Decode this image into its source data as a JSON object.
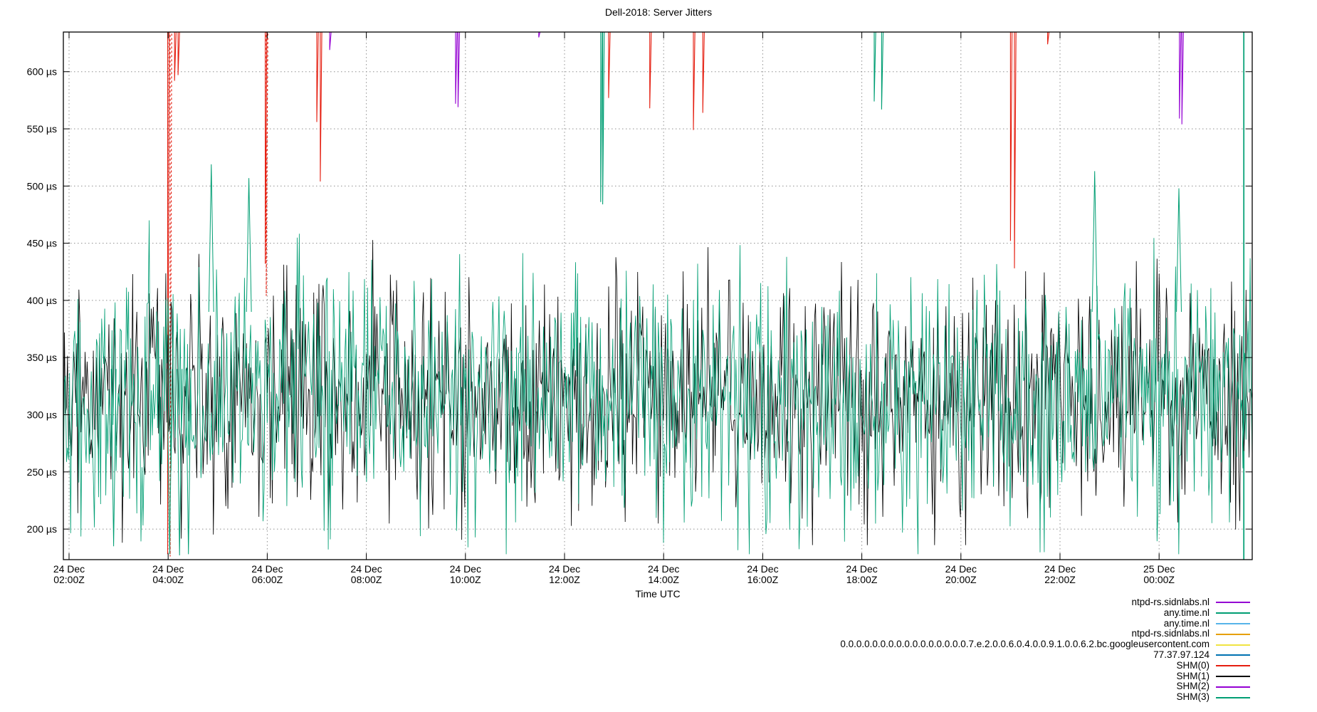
{
  "chart_data": {
    "type": "line",
    "title": "Dell-2018: Server Jitters",
    "xlabel": "Time UTC",
    "ylabel": "",
    "y_unit": "µs",
    "ylim_us": [
      173,
      635
    ],
    "grid": true,
    "legend_position": "bottom-right",
    "y_ticks": [
      {
        "value": 200,
        "label": "200 µs"
      },
      {
        "value": 250,
        "label": "250 µs"
      },
      {
        "value": 300,
        "label": "300 µs"
      },
      {
        "value": 350,
        "label": "350 µs"
      },
      {
        "value": 400,
        "label": "400 µs"
      },
      {
        "value": 450,
        "label": "450 µs"
      },
      {
        "value": 500,
        "label": "500 µs"
      },
      {
        "value": 550,
        "label": "550 µs"
      },
      {
        "value": 600,
        "label": "600 µs"
      }
    ],
    "x_ticks": [
      {
        "hour": 0,
        "line1": "24 Dec",
        "line2": "02:00Z"
      },
      {
        "hour": 2,
        "line1": "24 Dec",
        "line2": "04:00Z"
      },
      {
        "hour": 4,
        "line1": "24 Dec",
        "line2": "06:00Z"
      },
      {
        "hour": 6,
        "line1": "24 Dec",
        "line2": "08:00Z"
      },
      {
        "hour": 8,
        "line1": "24 Dec",
        "line2": "10:00Z"
      },
      {
        "hour": 10,
        "line1": "24 Dec",
        "line2": "12:00Z"
      },
      {
        "hour": 12,
        "line1": "24 Dec",
        "line2": "14:00Z"
      },
      {
        "hour": 14,
        "line1": "24 Dec",
        "line2": "16:00Z"
      },
      {
        "hour": 16,
        "line1": "24 Dec",
        "line2": "18:00Z"
      },
      {
        "hour": 18,
        "line1": "24 Dec",
        "line2": "20:00Z"
      },
      {
        "hour": 20,
        "line1": "24 Dec",
        "line2": "22:00Z"
      },
      {
        "hour": 22,
        "line1": "25 Dec",
        "line2": "00:00Z"
      }
    ],
    "series": [
      {
        "name": "ntpd-rs.sidnlabs.nl",
        "color": "#9400d3",
        "render": {
          "kind": "none"
        }
      },
      {
        "name": "any.time.nl",
        "color": "#009e73",
        "render": {
          "kind": "spikes",
          "events": [
            {
              "t": 10.73,
              "v": 486
            },
            {
              "t": 10.77,
              "v": 484
            },
            {
              "t": 16.25,
              "v": 574
            },
            {
              "t": 16.4,
              "v": 567
            },
            {
              "t": 23.71,
              "v": 176,
              "full": true
            }
          ]
        }
      },
      {
        "name": "any.time.nl",
        "color": "#56b4e9",
        "render": {
          "kind": "none"
        }
      },
      {
        "name": "ntpd-rs.sidnlabs.nl",
        "color": "#e69f00",
        "render": {
          "kind": "none"
        }
      },
      {
        "name": "0.0.0.0.0.0.0.0.0.0.0.0.0.0.0.0.7.e.2.0.0.6.0.4.0.0.9.1.0.0.6.2.bc.googleusercontent.com",
        "color": "#f0e442",
        "render": {
          "kind": "none"
        }
      },
      {
        "name": "77.37.97.124",
        "color": "#0072b2",
        "render": {
          "kind": "none"
        }
      },
      {
        "name": "SHM(0)",
        "color": "#e51e10",
        "render": {
          "kind": "spikes",
          "events": [
            {
              "t": 1.99,
              "v": 178
            },
            {
              "t": 2.04,
              "v": 176,
              "dashed": true
            },
            {
              "t": 2.13,
              "v": 592
            },
            {
              "t": 2.2,
              "v": 597
            },
            {
              "t": 3.96,
              "v": 432
            },
            {
              "t": 3.98,
              "v": 404,
              "dashed": true
            },
            {
              "t": 5.0,
              "v": 556
            },
            {
              "t": 5.07,
              "v": 504
            },
            {
              "t": 10.89,
              "v": 577
            },
            {
              "t": 11.72,
              "v": 568
            },
            {
              "t": 12.6,
              "v": 549
            },
            {
              "t": 12.79,
              "v": 564
            },
            {
              "t": 19.0,
              "v": 452
            },
            {
              "t": 19.08,
              "v": 428
            },
            {
              "t": 19.75,
              "v": 624
            }
          ]
        }
      },
      {
        "name": "SHM(1)",
        "color": "#000000",
        "render": {
          "kind": "noise",
          "seed": 20181224,
          "n": 1150,
          "mean": 316,
          "std": 50,
          "min": 186,
          "max": 533,
          "tail_p": 0.012,
          "tail_gain": 1.7
        }
      },
      {
        "name": "SHM(2)",
        "color": "#9400d3",
        "render": {
          "kind": "spikes",
          "events": [
            {
              "t": 5.26,
              "v": 619
            },
            {
              "t": 7.8,
              "v": 572
            },
            {
              "t": 7.85,
              "v": 569
            },
            {
              "t": 9.48,
              "v": 630
            },
            {
              "t": 22.41,
              "v": 559
            },
            {
              "t": 22.46,
              "v": 554
            }
          ]
        }
      },
      {
        "name": "SHM(3)",
        "color": "#009e73",
        "render": {
          "kind": "noise",
          "seed": 424242,
          "n": 1150,
          "mean": 318,
          "std": 54,
          "min": 178,
          "max": 519,
          "tail_p": 0.012,
          "tail_gain": 1.7,
          "dips": [
            {
              "t": 0.9,
              "v": 185
            },
            {
              "t": 2.03,
              "v": 178
            },
            {
              "t": 2.23,
              "v": 177
            },
            {
              "t": 2.41,
              "v": 178
            }
          ],
          "peaks": [
            {
              "t": 2.87,
              "v": 519
            },
            {
              "t": 3.63,
              "v": 507
            },
            {
              "t": 20.7,
              "v": 513
            },
            {
              "t": 22.4,
              "v": 498
            }
          ]
        }
      }
    ]
  }
}
